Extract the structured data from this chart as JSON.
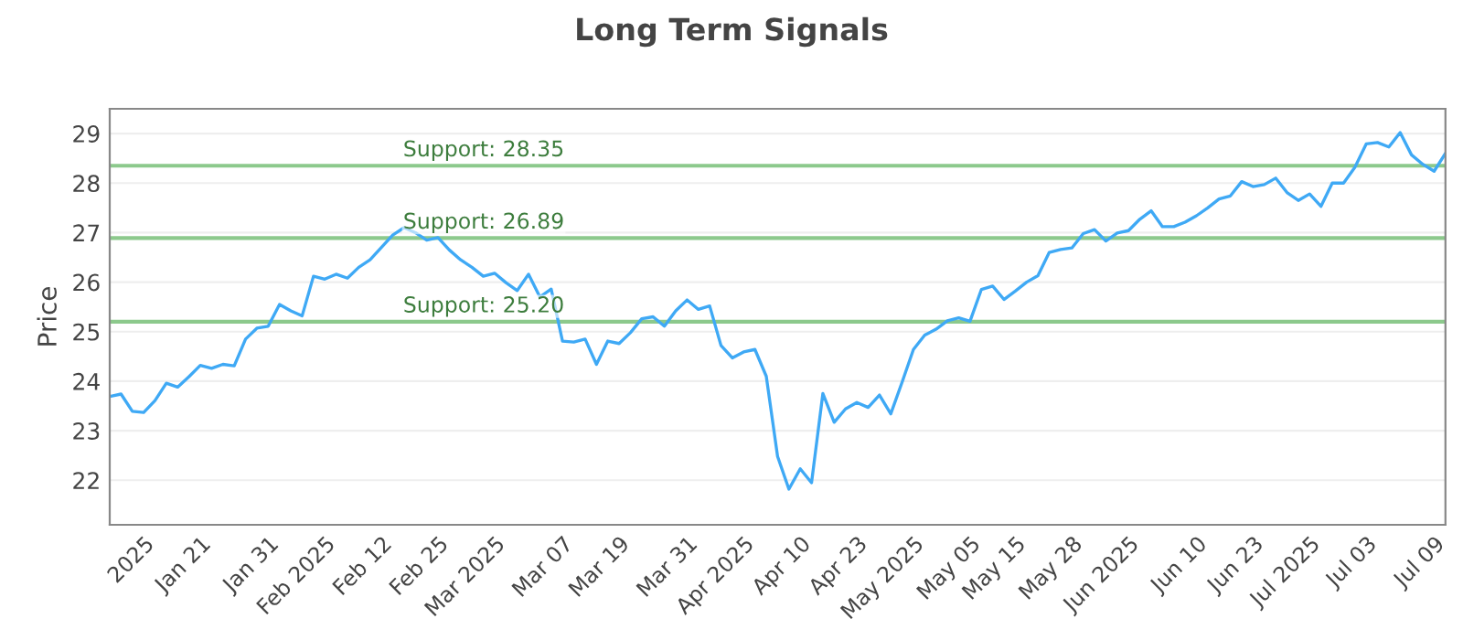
{
  "chart_data": {
    "type": "line",
    "title": "Long Term Signals",
    "ylabel": "Price",
    "categories": [
      null,
      null,
      null,
      "2025",
      null,
      null,
      null,
      null,
      "Jan 21",
      null,
      null,
      null,
      null,
      null,
      "Jan 31",
      null,
      null,
      null,
      null,
      "Feb 2025",
      null,
      null,
      null,
      null,
      "Feb 12",
      null,
      null,
      null,
      null,
      "Feb 25",
      null,
      null,
      null,
      null,
      "Mar 2025",
      null,
      null,
      null,
      null,
      null,
      "Mar 07",
      null,
      null,
      null,
      null,
      "Mar 19",
      null,
      null,
      null,
      null,
      null,
      "Mar 31",
      null,
      null,
      null,
      null,
      "Apr 2025",
      null,
      null,
      null,
      null,
      "Apr 10",
      null,
      null,
      null,
      null,
      "Apr 23",
      null,
      null,
      null,
      null,
      "May 2025",
      null,
      null,
      null,
      null,
      "May 05",
      null,
      null,
      null,
      "May 15",
      null,
      null,
      null,
      null,
      "May 28",
      null,
      null,
      null,
      null,
      "Jun 2025",
      null,
      null,
      null,
      null,
      null,
      "Jun 10",
      null,
      null,
      null,
      null,
      "Jun 23",
      null,
      null,
      null,
      null,
      "Jul 2025",
      null,
      null,
      null,
      null,
      "Jul 03",
      null,
      null,
      null,
      null,
      null,
      "Jul 09",
      null
    ],
    "series": [
      {
        "color": "#3fa9f5",
        "values": [
          23.69,
          23.74,
          23.39,
          23.37,
          23.61,
          23.96,
          23.88,
          24.09,
          24.32,
          24.26,
          24.34,
          24.31,
          24.85,
          25.07,
          25.11,
          25.55,
          25.42,
          25.32,
          26.12,
          26.06,
          26.16,
          26.08,
          26.3,
          26.45,
          26.7,
          26.95,
          27.1,
          27.0,
          26.85,
          26.9,
          26.65,
          26.45,
          26.3,
          26.12,
          26.18,
          25.99,
          25.83,
          26.16,
          25.7,
          25.86,
          24.81,
          24.79,
          24.85,
          24.34,
          24.81,
          24.76,
          24.98,
          25.26,
          25.3,
          25.11,
          25.42,
          25.64,
          25.45,
          25.52,
          24.72,
          24.47,
          24.59,
          24.64,
          24.1,
          22.48,
          21.82,
          22.23,
          21.95,
          23.75,
          23.17,
          23.44,
          23.57,
          23.47,
          23.72,
          23.34,
          23.98,
          24.64,
          24.93,
          25.05,
          25.22,
          25.28,
          25.21,
          25.85,
          25.92,
          25.65,
          25.82,
          26.0,
          26.13,
          26.6,
          26.66,
          26.69,
          26.98,
          27.06,
          26.83,
          26.99,
          27.04,
          27.27,
          27.44,
          27.12,
          27.12,
          27.21,
          27.34,
          27.5,
          27.68,
          27.74,
          28.03,
          27.93,
          27.97,
          28.1,
          27.81,
          27.65,
          27.78,
          27.53,
          28.0,
          28.0,
          28.32,
          28.79,
          28.82,
          28.73,
          29.02,
          28.57,
          28.38,
          28.24,
          28.6
        ]
      }
    ],
    "ylim": [
      21.1,
      29.5
    ],
    "yticks": [
      22,
      23,
      24,
      25,
      26,
      27,
      28,
      29
    ],
    "grid": "y",
    "marker": "none",
    "line_style": "solid",
    "ref_lines": [
      {
        "axis": "y",
        "value": 28.35,
        "label": "Support: 28.35",
        "color": "#8cc98c"
      },
      {
        "axis": "y",
        "value": 26.89,
        "label": "Support: 26.89",
        "color": "#8cc98c"
      },
      {
        "axis": "y",
        "value": 25.2,
        "label": "Support: 25.20",
        "color": "#8cc98c"
      }
    ]
  }
}
